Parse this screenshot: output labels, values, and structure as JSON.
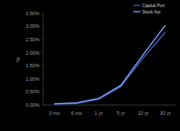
{
  "chart_data": {
    "type": "line",
    "y_label": "%",
    "categories": [
      "3 mo",
      "6 mo",
      "1 yr",
      "5 yr",
      "10 yr",
      "30 yr"
    ],
    "series": [
      {
        "name": "Capital Port",
        "color": "#3d5fc4",
        "values": [
          0.03,
          0.06,
          0.22,
          0.7,
          1.8,
          2.78
        ]
      },
      {
        "name": "Stock Apr",
        "color": "#7fa6ff",
        "values": [
          0.05,
          0.08,
          0.25,
          0.75,
          1.92,
          3.05
        ]
      }
    ],
    "ylim": [
      0,
      3.5
    ],
    "yticks": [
      {
        "value": 0,
        "label": "0.00%"
      },
      {
        "value": 0.5,
        "label": "0.50%"
      },
      {
        "value": 1,
        "label": "1.00%"
      },
      {
        "value": 1.5,
        "label": "1.50%"
      },
      {
        "value": 2,
        "label": "2.00%"
      },
      {
        "value": 2.5,
        "label": "2.50%"
      },
      {
        "value": 3,
        "label": "3.00%"
      },
      {
        "value": 3.5,
        "label": "3.50%"
      }
    ],
    "grid": false,
    "legend": "top-right"
  }
}
